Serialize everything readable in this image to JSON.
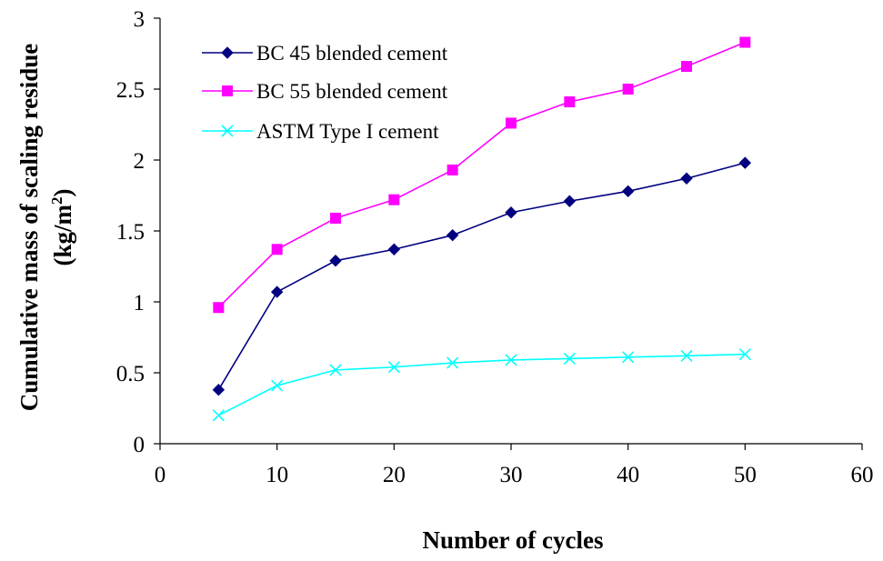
{
  "chart_data": {
    "type": "line",
    "title": "",
    "xlabel": "Number of cycles",
    "ylabel_line1": "Cumulative mass of scaling residue",
    "ylabel_line2_base": "(kg/m",
    "ylabel_line2_sup": "2",
    "ylabel_line2_end": ")",
    "xlim": [
      0,
      60
    ],
    "ylim": [
      0,
      3
    ],
    "xticks": [
      0,
      10,
      20,
      30,
      40,
      50,
      60
    ],
    "yticks": [
      0,
      0.5,
      1,
      1.5,
      2,
      2.5,
      3
    ],
    "xtick_labels": [
      "0",
      "10",
      "20",
      "30",
      "40",
      "50",
      "60"
    ],
    "ytick_labels": [
      "0",
      "0.5",
      "1",
      "1.5",
      "2",
      "2.5",
      "3"
    ],
    "grid": false,
    "legend_position": "top-left",
    "x": [
      5,
      10,
      15,
      20,
      25,
      30,
      35,
      40,
      45,
      50
    ],
    "series": [
      {
        "name": "BC 45 blended cement",
        "color": "#000080",
        "marker": "diamond",
        "values": [
          0.38,
          1.07,
          1.29,
          1.37,
          1.47,
          1.63,
          1.71,
          1.78,
          1.87,
          1.98
        ]
      },
      {
        "name": "BC 55 blended cement",
        "color": "#FF00FF",
        "marker": "square",
        "values": [
          0.96,
          1.37,
          1.59,
          1.72,
          1.93,
          2.26,
          2.41,
          2.5,
          2.66,
          2.83
        ]
      },
      {
        "name": "ASTM Type I cement",
        "color": "#00FFFF",
        "marker": "x",
        "values": [
          0.2,
          0.41,
          0.52,
          0.54,
          0.57,
          0.59,
          0.6,
          0.61,
          0.62,
          0.63
        ]
      }
    ]
  }
}
